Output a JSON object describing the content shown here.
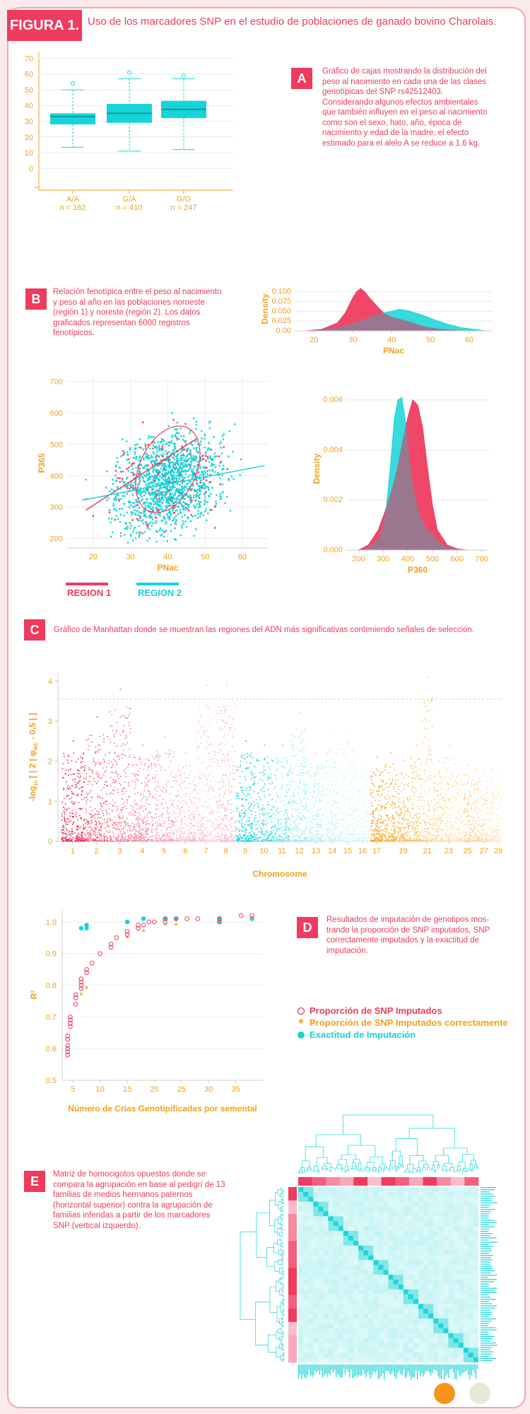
{
  "figure": {
    "tag": "FIGURA 1.",
    "title": "Uso de los marcadores SNP en el estudio de poblaciones de ganado bovino Charolais."
  },
  "colors": {
    "pink": "#ee3b5e",
    "teal": "#16d4d8",
    "orange": "#f0a21b",
    "light_pink": "#f7a8bd",
    "light_teal": "#a8ecef"
  },
  "panels": {
    "A": {
      "label": "A",
      "caption": [
        "Gráfico de cajas mostrando la distribución del",
        "peso al nacimiento en cada una de las clases",
        "genotípicas del SNP rs42512403.",
        "Considerando algunos efectos ambientales",
        "que también influyen en el peso al nacimiento",
        "como son el sexo, hato, año, época de",
        "nacimiento y edad de la madre, el efecto",
        "estimado para el alelo A se reduce a 1.6 kg."
      ]
    },
    "B": {
      "label": "B",
      "caption": [
        "Relación fenotípica entre el peso al nacimiento",
        "y peso al año en las poblaciones noroeste",
        "(región 1) y noreste (región 2). Los datos",
        "graficados representan 6000 registros",
        "fenotípicos."
      ]
    },
    "C": {
      "label": "C",
      "caption": [
        "Gráfico de Manhattan donde se muestran las regiones del ADN más significativas conteniendo señales de selección."
      ]
    },
    "D": {
      "label": "D",
      "caption": [
        "Resultados de imputación de genotipos mos-",
        "trando la proporción de SNP imputados, SNP",
        "correctamente imputados y la exactitud de",
        "imputación."
      ]
    },
    "E": {
      "label": "E",
      "caption": [
        "Matriz de homocigotos opuestos donde se",
        "compara la agrupación en base al pedigrí de 13",
        "familias de medios hermanos paternos",
        "(horizontal superior) contra la agrupación de",
        "familias inferidas a partir de los marcadores",
        "SNP (vertical izquierdo)."
      ]
    }
  },
  "chart_data": [
    {
      "id": "A",
      "type": "box",
      "categories": [
        "A/A",
        "G/A",
        "G/G"
      ],
      "counts": [
        "n = 162",
        "n = 410",
        "n = 247"
      ],
      "boxes": [
        {
          "q1": 28,
          "median": 33,
          "q3": 35,
          "whisker_low": 13.5,
          "whisker_high": 50,
          "outliers": [
            54
          ]
        },
        {
          "q1": 29,
          "median": 35,
          "q3": 41,
          "whisker_low": 11,
          "whisker_high": 57,
          "outliers": [
            61
          ]
        },
        {
          "q1": 32,
          "median": 37.5,
          "q3": 43,
          "whisker_low": 12,
          "whisker_high": 57,
          "outliers": [
            59
          ]
        }
      ],
      "yticks": [
        0,
        10,
        20,
        30,
        40,
        50,
        60,
        70
      ],
      "ylim": [
        -12,
        72
      ],
      "grid": true
    },
    {
      "id": "B-density-PNac",
      "type": "area",
      "xlabel": "PNac",
      "ylabel": "Density",
      "xticks": [
        20,
        30,
        40,
        50,
        60
      ],
      "yticks": [
        "0.00",
        "0.025",
        "0.050",
        "0.075",
        "0.100"
      ],
      "xlim": [
        15,
        66
      ],
      "ylim": [
        0,
        0.112
      ],
      "series": [
        {
          "name": "REGION 1",
          "x": [
            18,
            22,
            26,
            28,
            30,
            31,
            32,
            33,
            34,
            36,
            38,
            40,
            42,
            45,
            48,
            52,
            56,
            60
          ],
          "y": [
            0,
            0.004,
            0.02,
            0.045,
            0.085,
            0.1,
            0.108,
            0.1,
            0.088,
            0.065,
            0.045,
            0.035,
            0.03,
            0.022,
            0.012,
            0.005,
            0.002,
            0
          ]
        },
        {
          "name": "REGION 2",
          "x": [
            20,
            24,
            28,
            32,
            36,
            38,
            40,
            42,
            44,
            46,
            48,
            50,
            54,
            58,
            62,
            64
          ],
          "y": [
            0,
            0.004,
            0.012,
            0.025,
            0.04,
            0.046,
            0.05,
            0.055,
            0.052,
            0.046,
            0.04,
            0.032,
            0.018,
            0.008,
            0.003,
            0
          ]
        }
      ]
    },
    {
      "id": "B-scatter",
      "type": "scatter",
      "xlabel": "PNac",
      "ylabel": "P365",
      "xticks": [
        20,
        30,
        40,
        50,
        60
      ],
      "yticks": [
        200,
        300,
        400,
        500,
        600,
        700
      ],
      "xlim": [
        13,
        67
      ],
      "ylim": [
        170,
        710
      ],
      "series": [
        {
          "name": "REGION 1",
          "trend": [
            [
              18,
              290
            ],
            [
              48,
              520
            ]
          ]
        },
        {
          "name": "REGION 2",
          "trend": [
            [
              17,
              322
            ],
            [
              66,
              432
            ]
          ]
        }
      ],
      "legend": [
        "REGION 1",
        "REGION 2"
      ]
    },
    {
      "id": "B-density-P360",
      "type": "area",
      "xlabel": "P360",
      "ylabel": "Density",
      "xticks": [
        200,
        300,
        400,
        500,
        600,
        700
      ],
      "yticks": [
        "0.000",
        "0.002",
        "0.004",
        "0.006"
      ],
      "xlim": [
        150,
        730
      ],
      "ylim": [
        0,
        0.0065
      ],
      "series": [
        {
          "name": "REGION 1",
          "x": [
            200,
            240,
            280,
            310,
            340,
            360,
            380,
            400,
            420,
            440,
            460,
            480,
            500,
            520,
            560,
            600,
            640
          ],
          "y": [
            0,
            0.0002,
            0.0008,
            0.0016,
            0.0026,
            0.0034,
            0.0044,
            0.0053,
            0.006,
            0.0058,
            0.0049,
            0.0033,
            0.0018,
            0.0008,
            0.0002,
            5e-05,
            0
          ]
        },
        {
          "name": "REGION 2",
          "x": [
            220,
            260,
            290,
            310,
            330,
            345,
            360,
            375,
            390,
            405,
            420,
            440,
            460,
            480,
            500,
            520,
            540,
            560,
            600
          ],
          "y": [
            0,
            0.0002,
            0.0006,
            0.0014,
            0.0034,
            0.0052,
            0.006,
            0.0061,
            0.0052,
            0.0037,
            0.0025,
            0.0016,
            0.0011,
            0.0008,
            0.0006,
            0.0004,
            0.0002,
            0.0001,
            0
          ]
        }
      ]
    },
    {
      "id": "C",
      "type": "scatter",
      "xlabel": "Chromosome",
      "ylabel_parts": {
        "pre": "-log",
        "sub1": "10",
        "mid": "[ | 2 | φ",
        "sub2": "WC",
        "post": "- 0.5 | ]"
      },
      "chromosome_labels": [
        "1",
        "2",
        "3",
        "4",
        "5",
        "6",
        "7",
        "8",
        "9",
        "10",
        "11",
        "12",
        "13",
        "14",
        "15",
        "16",
        "17",
        "19",
        "21",
        "23",
        "25",
        "27",
        "29"
      ],
      "yticks": [
        0,
        1,
        2,
        3,
        4
      ],
      "ylim": [
        0,
        4.2
      ],
      "threshold": 3.55,
      "chromosome_peaks": [
        2.5,
        3.1,
        3.8,
        2.4,
        2.6,
        2.2,
        3.9,
        3.9,
        2.5,
        2.4,
        2.4,
        3.2,
        2.2,
        2.7,
        2.8,
        2.0,
        2.1,
        2.2,
        2.0,
        2.4,
        4.1,
        2.0,
        2.4,
        2.0,
        1.9,
        1.8,
        1.7,
        1.8,
        1.8
      ]
    },
    {
      "id": "D",
      "type": "scatter",
      "xlabel": "Número de Crías Genotipificadas por semental",
      "ylabel": "R²",
      "xticks": [
        5,
        10,
        15,
        20,
        25,
        30,
        35
      ],
      "yticks": [
        "0.5",
        "0.6",
        "0.7",
        "0.8",
        "0.9",
        "1.0"
      ],
      "xlim": [
        3,
        40
      ],
      "ylim": [
        0.5,
        1.04
      ],
      "series": [
        {
          "name": "Proporción de SNP Imputados",
          "marker": "circle",
          "x": [
            4,
            4,
            4,
            4,
            4,
            4,
            4.5,
            4.5,
            4.5,
            4.5,
            5.5,
            5.5,
            5.5,
            6.5,
            6.5,
            6.5,
            6.5,
            7.5,
            7.5,
            8.5,
            10,
            12,
            12,
            13,
            15,
            15,
            17,
            17,
            18,
            19,
            20,
            22,
            22,
            24,
            26,
            28,
            32,
            32,
            36,
            38
          ],
          "y": [
            0.58,
            0.59,
            0.6,
            0.61,
            0.63,
            0.64,
            0.67,
            0.68,
            0.69,
            0.7,
            0.74,
            0.76,
            0.77,
            0.79,
            0.8,
            0.81,
            0.82,
            0.84,
            0.85,
            0.87,
            0.9,
            0.92,
            0.93,
            0.95,
            0.96,
            0.97,
            0.98,
            0.99,
            0.99,
            1.0,
            1.0,
            1.0,
            1.01,
            1.01,
            1.01,
            1.01,
            1.01,
            1.0,
            1.02,
            1.02
          ]
        },
        {
          "name": "Proporción de SNP Imputados correctamente",
          "marker": "asterisk",
          "x": [
            6.5,
            7.5,
            15,
            18,
            22,
            24,
            32,
            38
          ],
          "y": [
            0.77,
            0.79,
            0.95,
            0.97,
            0.99,
            0.99,
            1.0,
            1.01
          ]
        },
        {
          "name": "Exactitud de Imputación",
          "marker": "dot",
          "x": [
            6.5,
            7.5,
            7.5,
            15,
            18,
            22,
            24,
            32,
            32,
            38
          ],
          "y": [
            0.98,
            0.98,
            0.99,
            1.0,
            1.01,
            1.01,
            1.01,
            1.0,
            1.01,
            1.01
          ]
        }
      ]
    },
    {
      "id": "E",
      "type": "heatmap",
      "families": 13
    }
  ]
}
